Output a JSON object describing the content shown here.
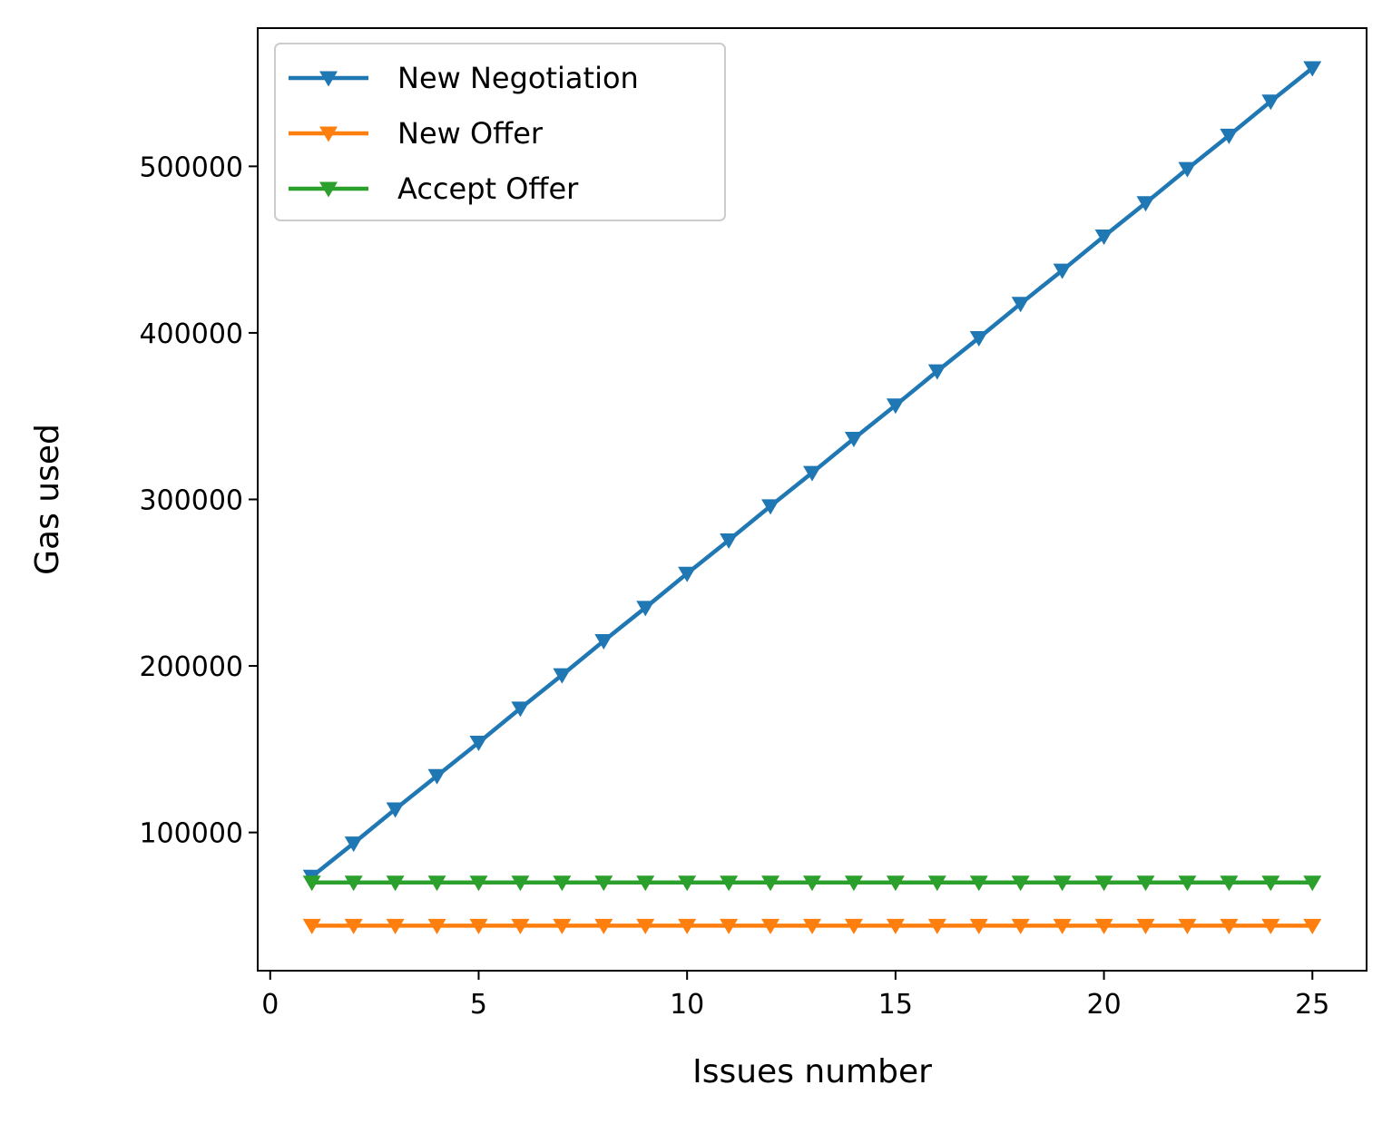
{
  "chart_data": {
    "type": "line",
    "title": "",
    "xlabel": "Issues number",
    "ylabel": "Gas used",
    "xlim": [
      -0.3,
      26.3
    ],
    "ylim": [
      17000,
      583000
    ],
    "xticks": [
      0,
      5,
      10,
      15,
      20,
      25
    ],
    "xtick_labels": [
      "0",
      "5",
      "10",
      "15",
      "20",
      "25"
    ],
    "yticks": [
      100000,
      200000,
      300000,
      400000,
      500000
    ],
    "ytick_labels": [
      "100000",
      "200000",
      "300000",
      "400000",
      "500000"
    ],
    "grid": false,
    "legend_position": "upper-left",
    "x": [
      1,
      2,
      3,
      4,
      5,
      6,
      7,
      8,
      9,
      10,
      11,
      12,
      13,
      14,
      15,
      16,
      17,
      18,
      19,
      20,
      21,
      22,
      23,
      24,
      25
    ],
    "series": [
      {
        "name": "New Negotiation",
        "color": "#1f77b4",
        "marker": "triangle-down",
        "values": [
          73500,
          93500,
          114000,
          134000,
          154000,
          174500,
          194500,
          215000,
          235000,
          255500,
          275500,
          296000,
          316000,
          336500,
          356500,
          377000,
          397000,
          417500,
          437500,
          458000,
          478000,
          498500,
          518500,
          539000,
          559000
        ]
      },
      {
        "name": "New Offer",
        "color": "#ff7f0e",
        "marker": "triangle-down",
        "values": [
          44000,
          44000,
          44000,
          44000,
          44000,
          44000,
          44000,
          44000,
          44000,
          44000,
          44000,
          44000,
          44000,
          44000,
          44000,
          44000,
          44000,
          44000,
          44000,
          44000,
          44000,
          44000,
          44000,
          44000,
          44000
        ]
      },
      {
        "name": "Accept Offer",
        "color": "#2ca02c",
        "marker": "triangle-down",
        "values": [
          70000,
          70000,
          70000,
          70000,
          70000,
          70000,
          70000,
          70000,
          70000,
          70000,
          70000,
          70000,
          70000,
          70000,
          70000,
          70000,
          70000,
          70000,
          70000,
          70000,
          70000,
          70000,
          70000,
          70000,
          70000
        ]
      }
    ]
  }
}
